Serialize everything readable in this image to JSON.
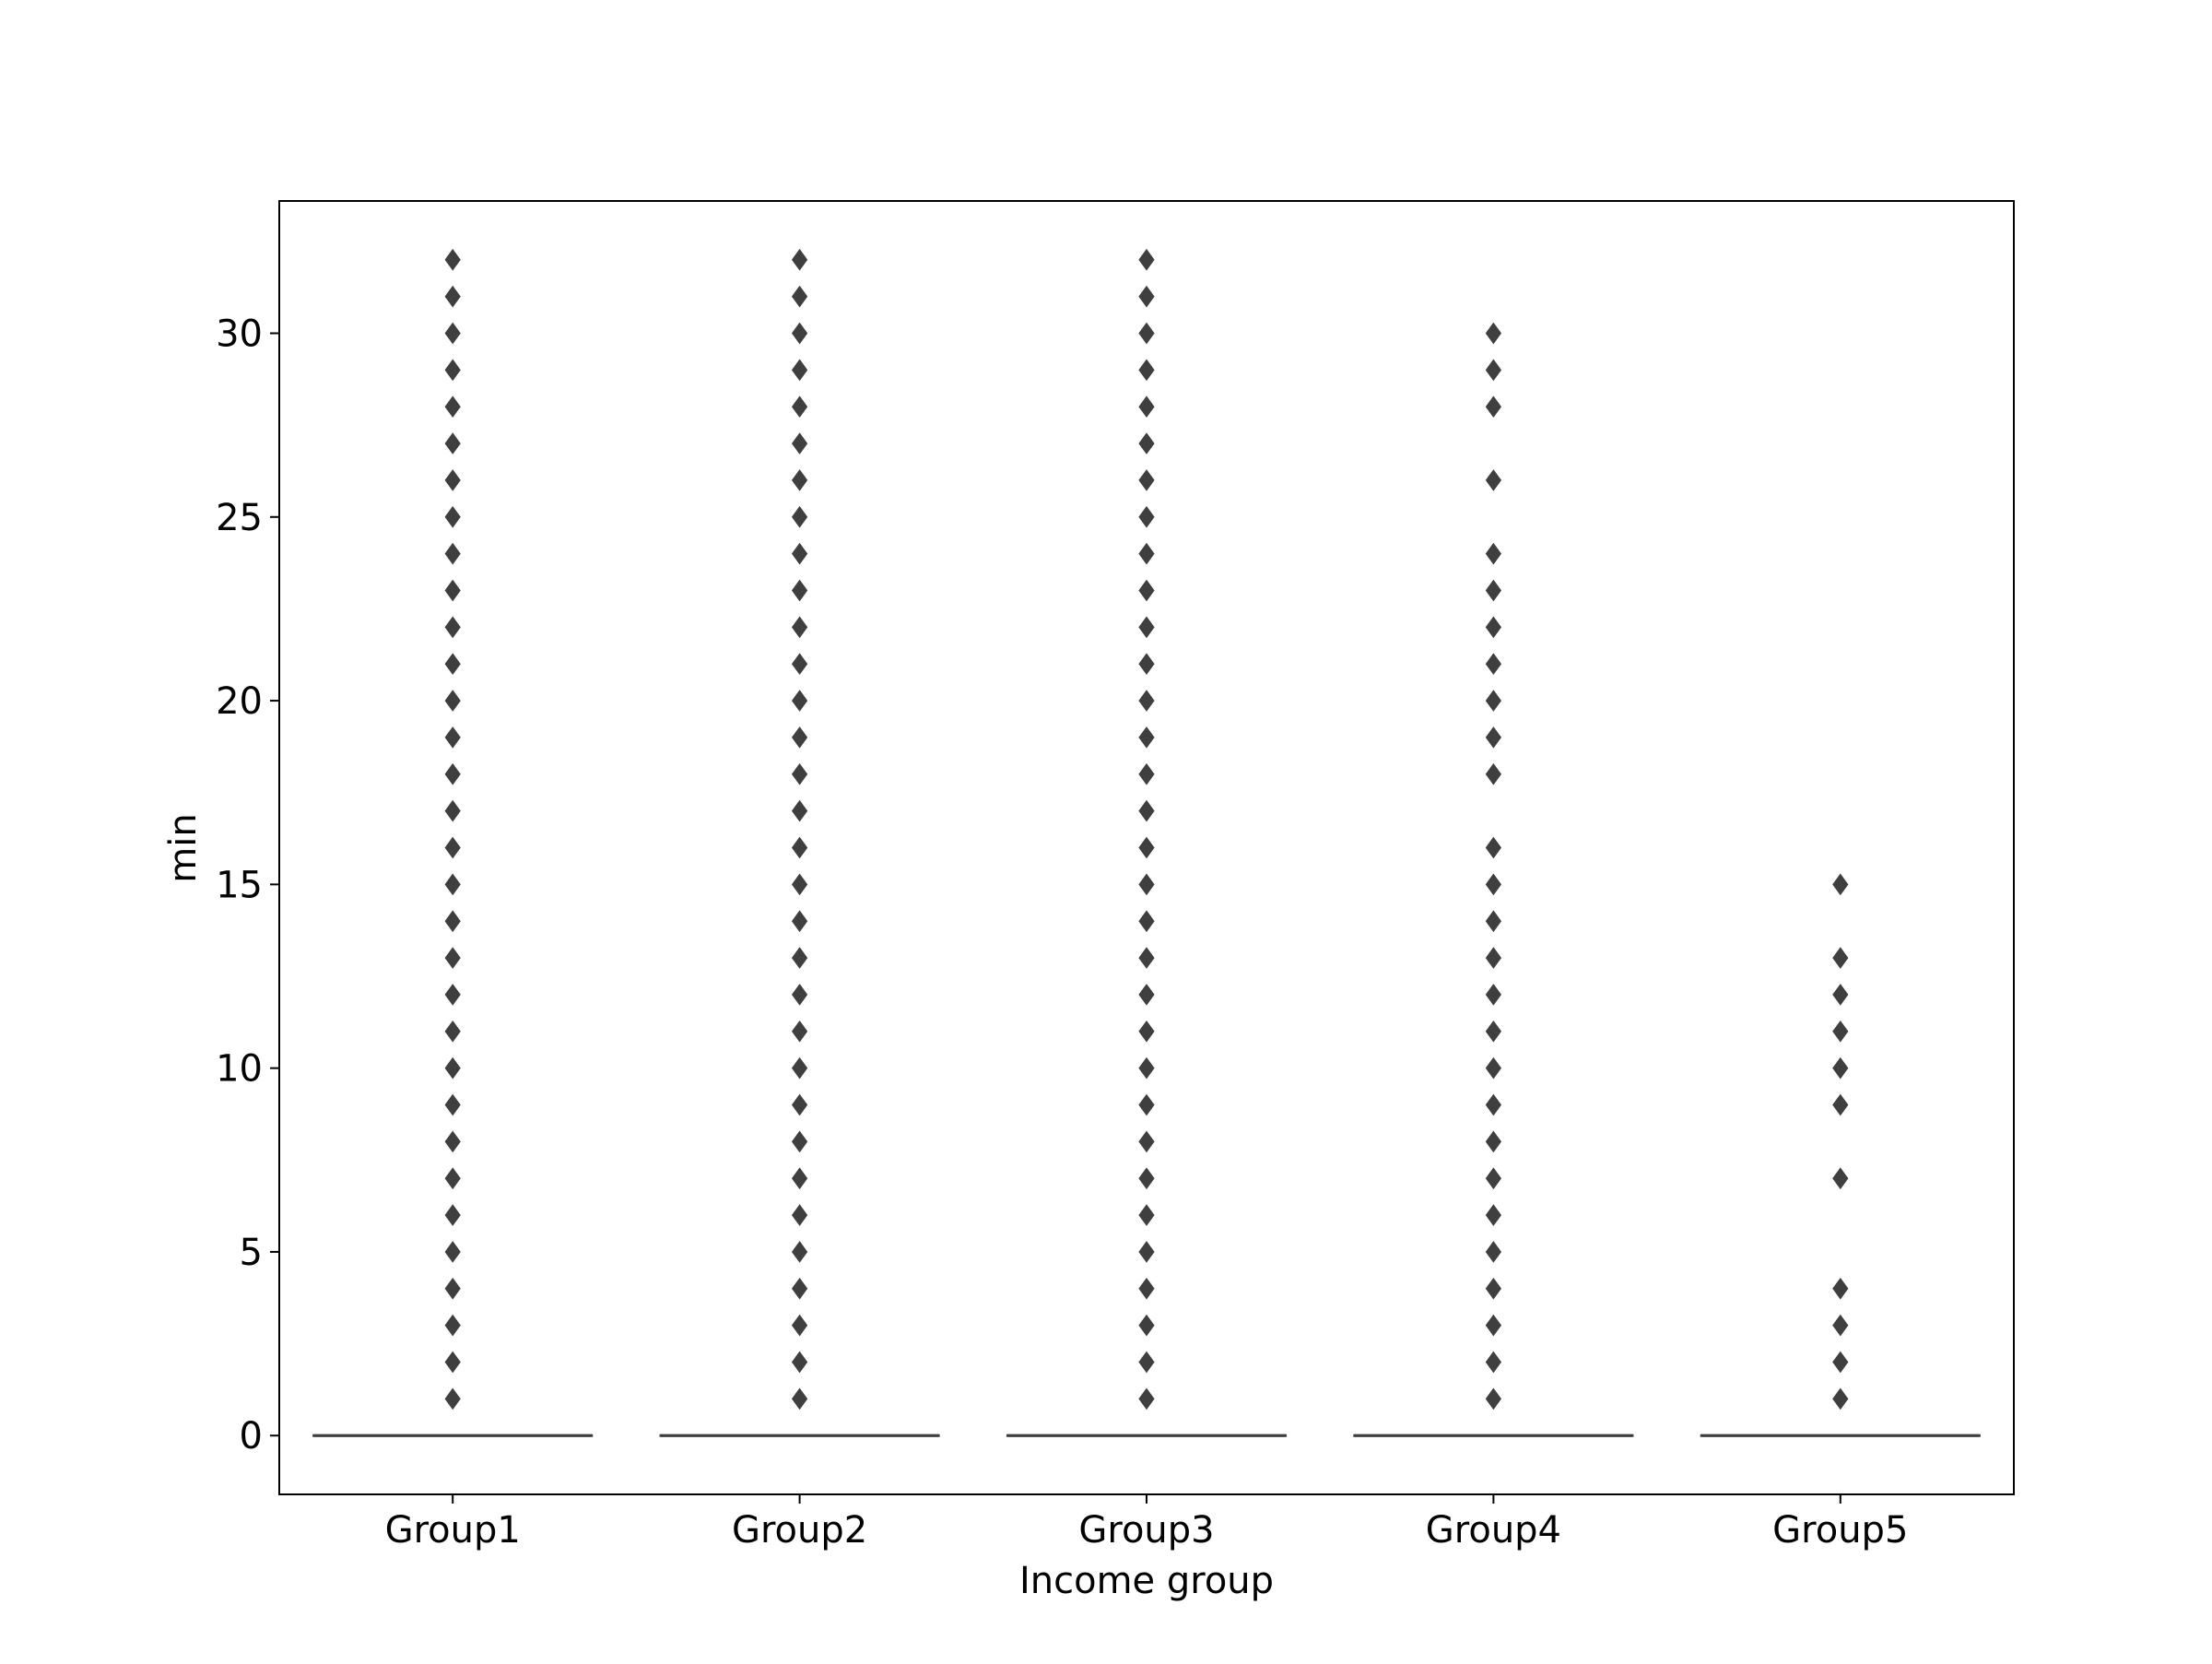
{
  "chart_data": {
    "type": "box",
    "title": "",
    "xlabel": "Income group",
    "ylabel": "min",
    "categories": [
      "Group1",
      "Group2",
      "Group3",
      "Group4",
      "Group5"
    ],
    "ylim": [
      -1.6,
      33.6
    ],
    "yticks": [
      0,
      5,
      10,
      15,
      20,
      25,
      30
    ],
    "grid": false,
    "colors": {
      "box_line": "#3f3f3f",
      "flier": "#3f3f3f",
      "frame": "#000000"
    },
    "boxes": [
      {
        "category": "Group1",
        "min": 0,
        "q1": 0,
        "median": 0,
        "q3": 0,
        "max": 0,
        "outliers": [
          1,
          2,
          3,
          4,
          5,
          6,
          7,
          8,
          9,
          10,
          11,
          12,
          13,
          14,
          15,
          16,
          17,
          18,
          19,
          20,
          21,
          22,
          23,
          24,
          25,
          26,
          27,
          28,
          29,
          30,
          31,
          32
        ]
      },
      {
        "category": "Group2",
        "min": 0,
        "q1": 0,
        "median": 0,
        "q3": 0,
        "max": 0,
        "outliers": [
          1,
          2,
          3,
          4,
          5,
          6,
          7,
          8,
          9,
          10,
          11,
          12,
          13,
          14,
          15,
          16,
          17,
          18,
          19,
          20,
          21,
          22,
          23,
          24,
          25,
          26,
          27,
          28,
          29,
          30,
          31,
          32
        ]
      },
      {
        "category": "Group3",
        "min": 0,
        "q1": 0,
        "median": 0,
        "q3": 0,
        "max": 0,
        "outliers": [
          1,
          2,
          3,
          4,
          5,
          6,
          7,
          8,
          9,
          10,
          11,
          12,
          13,
          14,
          15,
          16,
          17,
          18,
          19,
          20,
          21,
          22,
          23,
          24,
          25,
          26,
          27,
          28,
          29,
          30,
          31,
          32
        ]
      },
      {
        "category": "Group4",
        "min": 0,
        "q1": 0,
        "median": 0,
        "q3": 0,
        "max": 0,
        "outliers": [
          1,
          2,
          3,
          4,
          5,
          6,
          7,
          8,
          9,
          10,
          11,
          12,
          13,
          14,
          15,
          16,
          18,
          19,
          20,
          21,
          22,
          23,
          24,
          26,
          28,
          29,
          30
        ]
      },
      {
        "category": "Group5",
        "min": 0,
        "q1": 0,
        "median": 0,
        "q3": 0,
        "max": 0,
        "outliers": [
          1,
          2,
          3,
          4,
          7,
          9,
          10,
          11,
          12,
          13,
          15
        ]
      }
    ]
  }
}
